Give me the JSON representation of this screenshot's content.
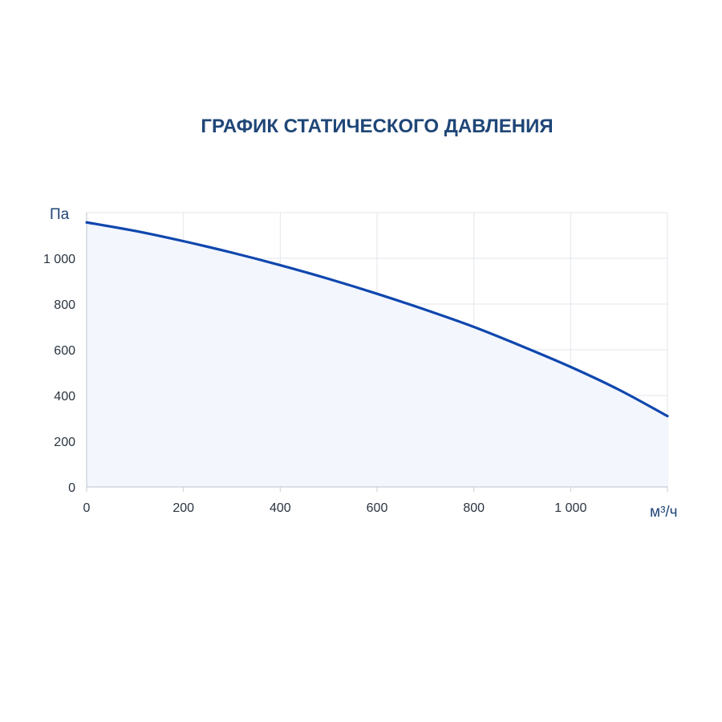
{
  "colors": {
    "series_line": "#0f47ae",
    "area_fill": "#f3f6fd",
    "grid": "#e3e6eb",
    "axis": "#c9cdd4",
    "title": "#1f4677"
  },
  "chart_data": {
    "type": "area",
    "title": "ГРАФИК СТАТИЧЕСКОГО ДАВЛЕНИЯ",
    "xlabel": "м³/ч",
    "ylabel": "Па",
    "xlim": [
      0,
      1200
    ],
    "ylim": [
      0,
      1200
    ],
    "x_ticks": [
      0,
      200,
      400,
      600,
      800,
      1000
    ],
    "y_ticks": [
      0,
      200,
      400,
      600,
      800,
      1000
    ],
    "x_tick_labels": [
      "0",
      "200",
      "400",
      "600",
      "800",
      "1 000"
    ],
    "y_tick_labels": [
      "0",
      "200",
      "400",
      "600",
      "800",
      "1 000"
    ],
    "grid": true,
    "legend": "none",
    "series": [
      {
        "x": [
          0,
          100,
          200,
          300,
          400,
          500,
          600,
          700,
          800,
          900,
          1000,
          1100,
          1200
        ],
        "values": [
          1157,
          1120,
          1075,
          1025,
          970,
          910,
          845,
          775,
          700,
          615,
          525,
          425,
          310
        ]
      }
    ]
  }
}
